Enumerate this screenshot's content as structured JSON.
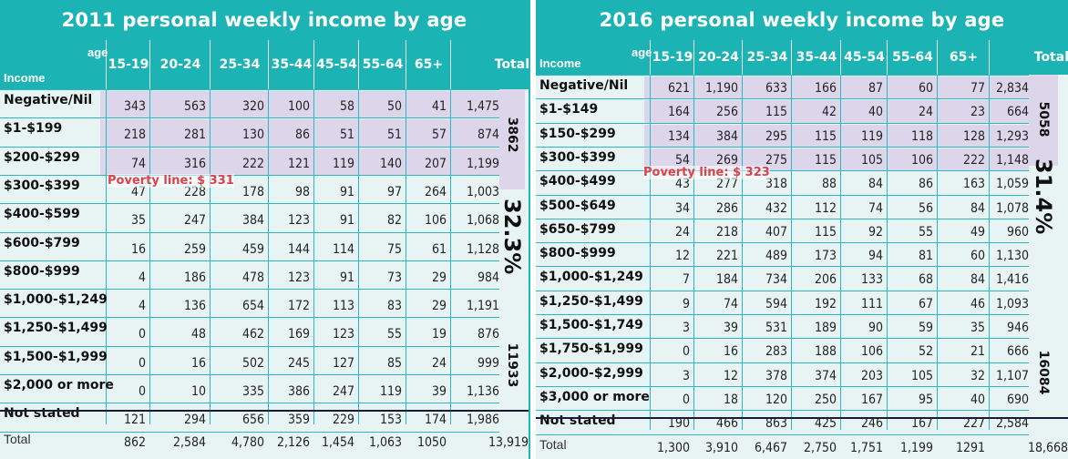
{
  "chart_data": [
    {
      "type": "table",
      "title": "2011 personal weekly income by age",
      "col_header_label": "age",
      "row_header_label": "Income",
      "columns": [
        "15-19",
        "20-24",
        "25-34",
        "35-44",
        "45-54",
        "55-64",
        "65+",
        "Total"
      ],
      "rows": [
        {
          "label": "Negative/Nil",
          "values": [
            343,
            563,
            320,
            100,
            58,
            50,
            41,
            1475
          ],
          "display": [
            "343",
            "563",
            "320",
            "100",
            "58",
            "50",
            "41",
            "1,475"
          ]
        },
        {
          "label": "$1-$199",
          "values": [
            218,
            281,
            130,
            86,
            51,
            51,
            57,
            874
          ],
          "display": [
            "218",
            "281",
            "130",
            "86",
            "51",
            "51",
            "57",
            "874"
          ]
        },
        {
          "label": "$200-$299",
          "values": [
            74,
            316,
            222,
            121,
            119,
            140,
            207,
            1199
          ],
          "display": [
            "74",
            "316",
            "222",
            "121",
            "119",
            "140",
            "207",
            "1,199"
          ]
        },
        {
          "label": "$300-$399",
          "values": [
            47,
            228,
            178,
            98,
            91,
            97,
            264,
            1003
          ],
          "display": [
            "47",
            "228",
            "178",
            "98",
            "91",
            "97",
            "264",
            "1,003"
          ]
        },
        {
          "label": "$400-$599",
          "values": [
            35,
            247,
            384,
            123,
            91,
            82,
            106,
            1068
          ],
          "display": [
            "35",
            "247",
            "384",
            "123",
            "91",
            "82",
            "106",
            "1,068"
          ]
        },
        {
          "label": "$600-$799",
          "values": [
            16,
            259,
            459,
            144,
            114,
            75,
            61,
            1128
          ],
          "display": [
            "16",
            "259",
            "459",
            "144",
            "114",
            "75",
            "61",
            "1,128"
          ]
        },
        {
          "label": "$800-$999",
          "values": [
            4,
            186,
            478,
            123,
            91,
            73,
            29,
            984
          ],
          "display": [
            "4",
            "186",
            "478",
            "123",
            "91",
            "73",
            "29",
            "984"
          ]
        },
        {
          "label": "$1,000-$1,249",
          "values": [
            4,
            136,
            654,
            172,
            113,
            83,
            29,
            1191
          ],
          "display": [
            "4",
            "136",
            "654",
            "172",
            "113",
            "83",
            "29",
            "1,191"
          ]
        },
        {
          "label": "$1,250-$1,499",
          "values": [
            0,
            48,
            462,
            169,
            123,
            55,
            19,
            876
          ],
          "display": [
            "0",
            "48",
            "462",
            "169",
            "123",
            "55",
            "19",
            "876"
          ]
        },
        {
          "label": "$1,500-$1,999",
          "values": [
            0,
            16,
            502,
            245,
            127,
            85,
            24,
            999
          ],
          "display": [
            "0",
            "16",
            "502",
            "245",
            "127",
            "85",
            "24",
            "999"
          ]
        },
        {
          "label": "$2,000 or more",
          "values": [
            0,
            10,
            335,
            386,
            247,
            119,
            39,
            1136
          ],
          "display": [
            "0",
            "10",
            "335",
            "386",
            "247",
            "119",
            "39",
            "1,136"
          ]
        },
        {
          "label": "Not stated",
          "values": [
            121,
            294,
            656,
            359,
            229,
            153,
            174,
            1986
          ],
          "display": [
            "121",
            "294",
            "656",
            "359",
            "229",
            "153",
            "174",
            "1,986"
          ],
          "struck": true
        }
      ],
      "total": {
        "label": "Total",
        "values": [
          862,
          2584,
          4780,
          2126,
          1454,
          1063,
          1050,
          13919
        ],
        "display": [
          "862",
          "2,584",
          "4,780",
          "2,126",
          "1,454",
          "1,063",
          "1050",
          "13,919"
        ]
      },
      "poverty_line": "Poverty line: $ 331",
      "below_poverty_sum": "3862",
      "above_poverty_sum": "11933",
      "below_poverty_pct": "32.3%"
    },
    {
      "type": "table",
      "title": "2016 personal weekly income by age",
      "col_header_label": "age",
      "row_header_label": "Income",
      "columns": [
        "15-19",
        "20-24",
        "25-34",
        "35-44",
        "45-54",
        "55-64",
        "65+",
        "Total"
      ],
      "rows": [
        {
          "label": "Negative/Nil",
          "values": [
            621,
            1190,
            633,
            166,
            87,
            60,
            77,
            2834
          ],
          "display": [
            "621",
            "1,190",
            "633",
            "166",
            "87",
            "60",
            "77",
            "2,834"
          ]
        },
        {
          "label": "$1-$149",
          "values": [
            164,
            256,
            115,
            42,
            40,
            24,
            23,
            664
          ],
          "display": [
            "164",
            "256",
            "115",
            "42",
            "40",
            "24",
            "23",
            "664"
          ]
        },
        {
          "label": "$150-$299",
          "values": [
            134,
            384,
            295,
            115,
            119,
            118,
            128,
            1293
          ],
          "display": [
            "134",
            "384",
            "295",
            "115",
            "119",
            "118",
            "128",
            "1,293"
          ]
        },
        {
          "label": "$300-$399",
          "values": [
            54,
            269,
            275,
            115,
            105,
            106,
            222,
            1148
          ],
          "display": [
            "54",
            "269",
            "275",
            "115",
            "105",
            "106",
            "222",
            "1,148"
          ]
        },
        {
          "label": "$400-$499",
          "values": [
            43,
            277,
            318,
            88,
            84,
            86,
            163,
            1059
          ],
          "display": [
            "43",
            "277",
            "318",
            "88",
            "84",
            "86",
            "163",
            "1,059"
          ]
        },
        {
          "label": "$500-$649",
          "values": [
            34,
            286,
            432,
            112,
            74,
            56,
            84,
            1078
          ],
          "display": [
            "34",
            "286",
            "432",
            "112",
            "74",
            "56",
            "84",
            "1,078"
          ]
        },
        {
          "label": "$650-$799",
          "values": [
            24,
            218,
            407,
            115,
            92,
            55,
            49,
            960
          ],
          "display": [
            "24",
            "218",
            "407",
            "115",
            "92",
            "55",
            "49",
            "960"
          ]
        },
        {
          "label": "$800-$999",
          "values": [
            12,
            221,
            489,
            173,
            94,
            81,
            60,
            1130
          ],
          "display": [
            "12",
            "221",
            "489",
            "173",
            "94",
            "81",
            "60",
            "1,130"
          ]
        },
        {
          "label": "$1,000-$1,249",
          "values": [
            7,
            184,
            734,
            206,
            133,
            68,
            84,
            1416
          ],
          "display": [
            "7",
            "184",
            "734",
            "206",
            "133",
            "68",
            "84",
            "1,416"
          ]
        },
        {
          "label": "$1,250-$1,499",
          "values": [
            9,
            74,
            594,
            192,
            111,
            67,
            46,
            1093
          ],
          "display": [
            "9",
            "74",
            "594",
            "192",
            "111",
            "67",
            "46",
            "1,093"
          ]
        },
        {
          "label": "$1,500-$1,749",
          "values": [
            3,
            39,
            531,
            189,
            90,
            59,
            35,
            946
          ],
          "display": [
            "3",
            "39",
            "531",
            "189",
            "90",
            "59",
            "35",
            "946"
          ]
        },
        {
          "label": "$1,750-$1,999",
          "values": [
            0,
            16,
            283,
            188,
            106,
            52,
            21,
            666
          ],
          "display": [
            "0",
            "16",
            "283",
            "188",
            "106",
            "52",
            "21",
            "666"
          ]
        },
        {
          "label": "$2,000-$2,999",
          "values": [
            3,
            12,
            378,
            374,
            203,
            105,
            32,
            1107
          ],
          "display": [
            "3",
            "12",
            "378",
            "374",
            "203",
            "105",
            "32",
            "1,107"
          ]
        },
        {
          "label": "$3,000 or more",
          "values": [
            0,
            18,
            120,
            250,
            167,
            95,
            40,
            690
          ],
          "display": [
            "0",
            "18",
            "120",
            "250",
            "167",
            "95",
            "40",
            "690"
          ]
        },
        {
          "label": "Not stated",
          "values": [
            190,
            466,
            863,
            425,
            246,
            167,
            227,
            2584
          ],
          "display": [
            "190",
            "466",
            "863",
            "425",
            "246",
            "167",
            "227",
            "2,584"
          ],
          "struck": true
        }
      ],
      "total": {
        "label": "Total",
        "values": [
          1300,
          3910,
          6467,
          2750,
          1751,
          1199,
          1291,
          18668
        ],
        "display": [
          "1,300",
          "3,910",
          "6,467",
          "2,750",
          "1,751",
          "1,199",
          "1291",
          "18,668"
        ]
      },
      "poverty_line": "Poverty line: $ 323",
      "below_poverty_sum": "5058",
      "above_poverty_sum": "16084",
      "below_poverty_pct": "31.4%"
    }
  ],
  "colors": {
    "header": "#1bb3b3",
    "grid": "#2ab8c2",
    "highlight": "#ddd6ea",
    "poverty": "#e0404a",
    "background": "#e8f4f3"
  }
}
